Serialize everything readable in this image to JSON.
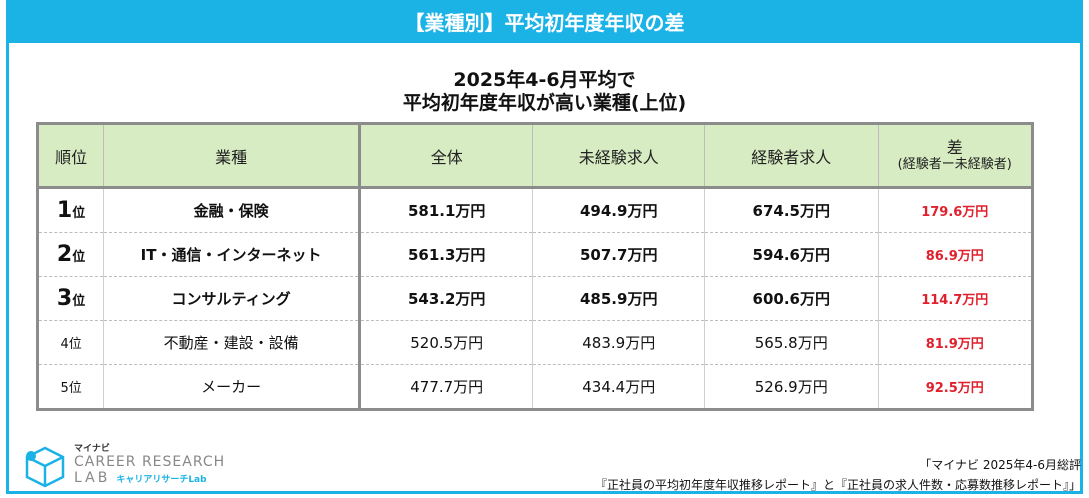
{
  "banner": {
    "title": "【業種別】平均初年度年収の差"
  },
  "heading": {
    "line1": "2025年4-6月平均で",
    "line2": "平均初年度年収が高い業種(上位)"
  },
  "table": {
    "headers": {
      "rank": "順位",
      "industry": "業種",
      "all": "全体",
      "inexperienced": "未経験求人",
      "experienced": "経験者求人",
      "diff": "差",
      "diff_sub": "(経験者ー未経験者)"
    },
    "rank_suffix": "位",
    "rows": [
      {
        "rank": "1",
        "industry": "金融・保険",
        "all": "581.1万円",
        "inexperienced": "494.9万円",
        "experienced": "674.5万円",
        "diff": "179.6万円"
      },
      {
        "rank": "2",
        "industry": "IT・通信・インターネット",
        "all": "561.3万円",
        "inexperienced": "507.7万円",
        "experienced": "594.6万円",
        "diff": "86.9万円"
      },
      {
        "rank": "3",
        "industry": "コンサルティング",
        "all": "543.2万円",
        "inexperienced": "485.9万円",
        "experienced": "600.6万円",
        "diff": "114.7万円"
      },
      {
        "rank": "4位",
        "industry": "不動産・建設・設備",
        "all": "520.5万円",
        "inexperienced": "483.9万円",
        "experienced": "565.8万円",
        "diff": "81.9万円"
      },
      {
        "rank": "5位",
        "industry": "メーカー",
        "all": "477.7万円",
        "inexperienced": "434.4万円",
        "experienced": "526.9万円",
        "diff": "92.5万円"
      }
    ]
  },
  "logo": {
    "small": "マイナビ",
    "line1": "CAREER RESEARCH",
    "line2": "LAB",
    "jp": "キャリアリサーチLab"
  },
  "source": {
    "line1": "「マイナビ 2025年4-6月総評",
    "line2": "『正社員の平均初年度年収推移レポート』と『正社員の求人件数・応募数推移レポート』」"
  },
  "colors": {
    "accent": "#1bb2e6",
    "header_bg": "#d7ecc2",
    "diff_red": "#e0202c"
  }
}
